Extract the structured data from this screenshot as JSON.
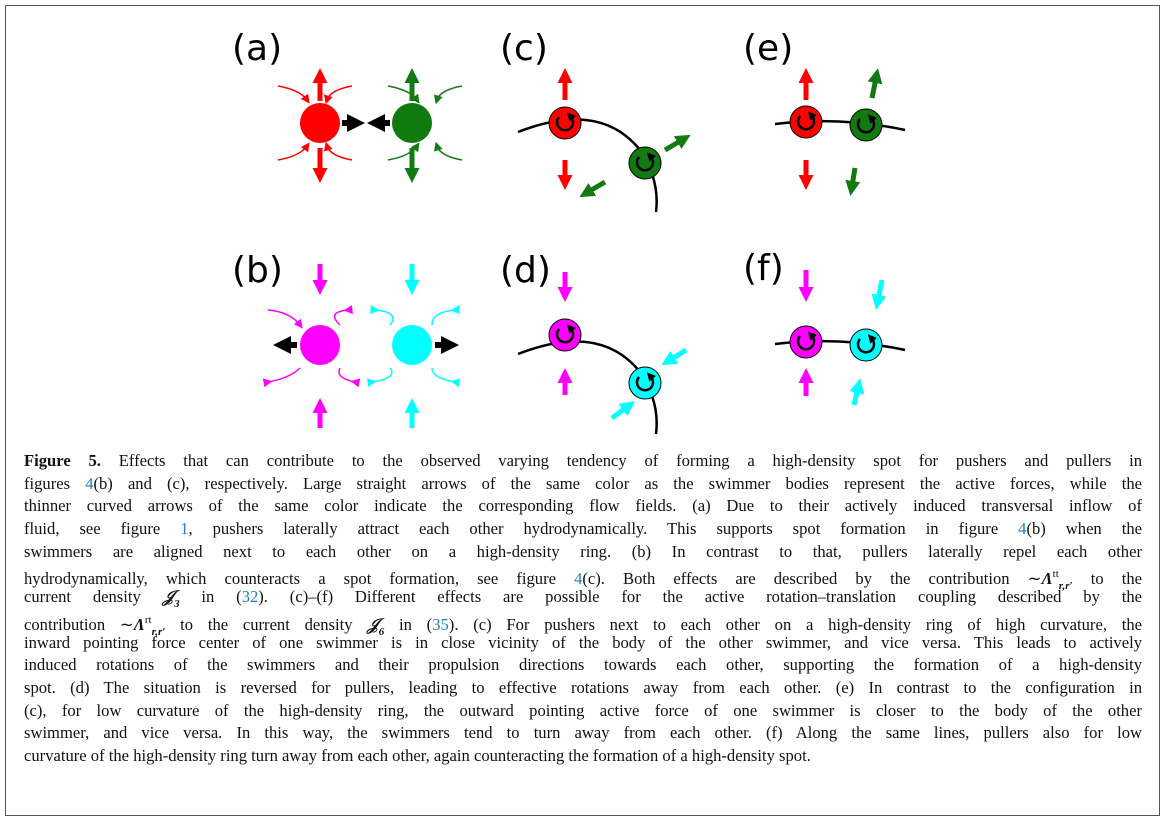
{
  "figure": {
    "panels": [
      "(a)",
      "(b)",
      "(c)",
      "(d)",
      "(e)",
      "(f)"
    ]
  },
  "caption": {
    "lines": [
      [
        {
          "text": "Figure 5.",
          "style": "bold"
        },
        " Effects that can contribute to the observed varying tendency of forming a high-density spot for pushers and pullers in"
      ],
      [
        "figures ",
        {
          "text": "4",
          "style": "link"
        },
        "(b) and (c), respectively. Large straight arrows of the same color as the swimmer bodies represent the active forces, while the"
      ],
      [
        "thinner curved arrows of the same color indicate the corresponding flow fields. (a) Due to their actively induced transversal inflow of"
      ],
      [
        "fluid, see figure ",
        {
          "text": "1",
          "style": "link"
        },
        ", pushers laterally attract each other hydrodynamically. This supports spot formation in figure ",
        {
          "text": "4",
          "style": "link"
        },
        "(b) when the"
      ],
      [
        "swimmers are aligned next to each other on a high-density ring. (b) In contrast to that, pullers laterally repel each other"
      ],
      [
        "hydrodynamically, which counteracts a spot formation, see figure ",
        {
          "text": "4",
          "style": "link"
        },
        "(c). Both effects are described by the contribution ∼",
        {
          "text": "Λ",
          "style": "math"
        },
        {
          "text": "tt",
          "style": "sup"
        },
        {
          "text": "r,r′",
          "style": "sub"
        },
        " to the"
      ],
      [
        "current density ",
        {
          "text": "𝒥",
          "style": "math"
        },
        {
          "text": "3",
          "style": "sub"
        },
        " in (",
        {
          "text": "32",
          "style": "link"
        },
        "). (c)–(f) Different effects are possible for the active rotation–translation coupling described by the"
      ],
      [
        "contribution ∼",
        {
          "text": "Λ",
          "style": "math"
        },
        {
          "text": "rt",
          "style": "sup"
        },
        {
          "text": "r,r′",
          "style": "sub"
        },
        " to the current density ",
        {
          "text": "𝒥",
          "style": "math"
        },
        {
          "text": "6",
          "style": "sub"
        },
        " in (",
        {
          "text": "35",
          "style": "link"
        },
        "). (c) For pushers next to each other on a high-density ring of high curvature, the"
      ],
      [
        "inward pointing force center of one swimmer is in close vicinity of the body of the other swimmer, and vice versa. This leads to actively"
      ],
      [
        "induced rotations of the swimmers and their propulsion directions towards each other, supporting the formation of a high-density"
      ],
      [
        "spot. (d) The situation is reversed for pullers, leading to effective rotations away from each other. (e) In contrast to the configuration in"
      ],
      [
        "(c), for low curvature of the high-density ring, the outward pointing active force of one swimmer is closer to the body of the other"
      ],
      [
        "swimmer, and vice versa. In this way, the swimmers tend to turn away from each other. (f) Along the same lines, pullers also for low"
      ],
      [
        "curvature of the high-density ring turn away from each other, again counteracting the formation of a high-density spot."
      ]
    ]
  }
}
